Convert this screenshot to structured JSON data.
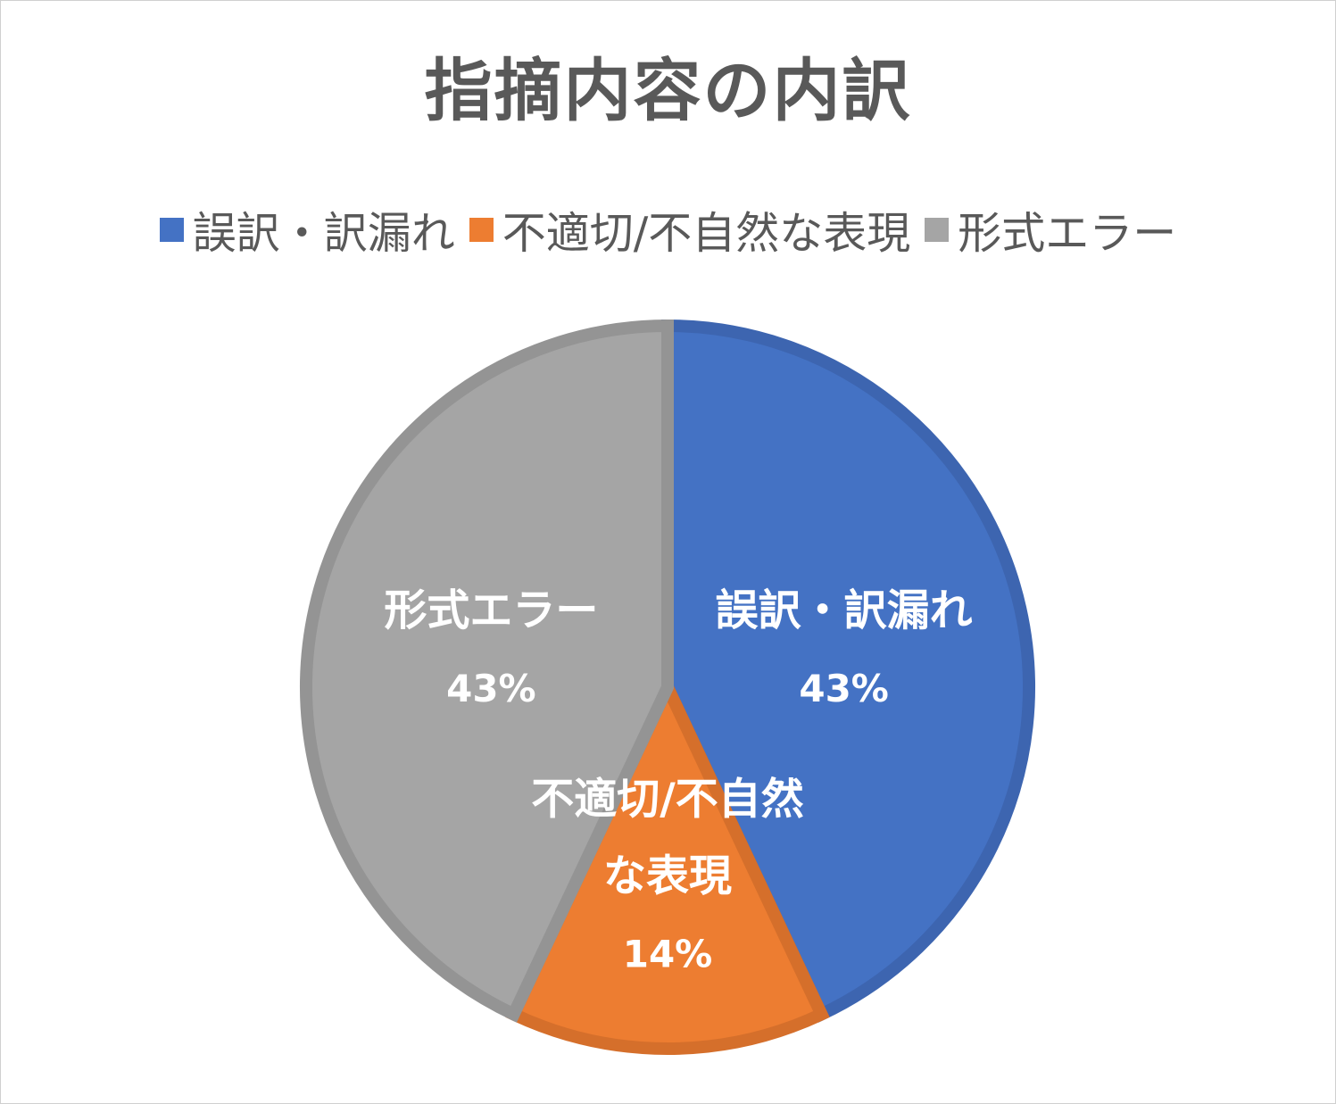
{
  "chart_data": {
    "type": "pie",
    "title": "指摘内容の内訳",
    "categories": [
      "誤訳・訳漏れ",
      "不適切/不自然な表現",
      "形式エラー"
    ],
    "values": [
      43,
      14,
      43
    ],
    "unit": "%",
    "data_labels": [
      {
        "category_lines": [
          "誤訳・訳漏れ"
        ],
        "value": "43%"
      },
      {
        "category_lines": [
          "不適切/不自然",
          "な表現"
        ],
        "value": "14%"
      },
      {
        "category_lines": [
          "形式エラー"
        ],
        "value": "43%"
      }
    ],
    "colors": [
      "#4472c4",
      "#ed7d31",
      "#a5a5a5"
    ],
    "border_colors": [
      "#3d65b0",
      "#d56f2b",
      "#949494"
    ],
    "legend_position": "top",
    "start_angle_deg": 0,
    "direction": "clockwise"
  },
  "legend": {
    "items": [
      {
        "label": "誤訳・訳漏れ",
        "color": "#4472c4"
      },
      {
        "label": "不適切/不自然な表現",
        "color": "#ed7d31"
      },
      {
        "label": "形式エラー",
        "color": "#a5a5a5"
      }
    ]
  }
}
